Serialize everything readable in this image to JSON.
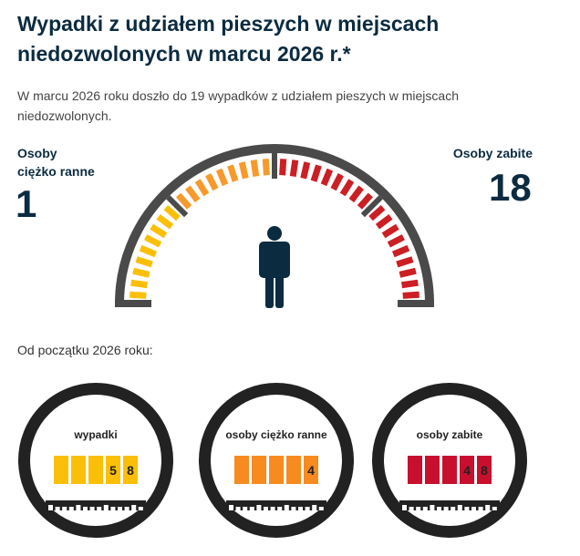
{
  "title": "Wypadki z udziałem pieszych w miejscach niedozwolonych w marcu 2026 r.*",
  "description": "W marcu 2026 roku doszło do 19 wypadków z udziałem pieszych w miejscach niedozwolonych.",
  "injured": {
    "label_line1": "Osoby",
    "label_line2": "ciężko ranne",
    "value": "1"
  },
  "killed": {
    "label": "Osoby zabite",
    "value": "18"
  },
  "since_label": "Od początku 2026 roku:",
  "colors": {
    "yellow": "#fbbf07",
    "orange": "#f79a2b",
    "red": "#cc1f24",
    "gauge_gray": "#4a4a4a",
    "person": "#0b2b40"
  },
  "counters": [
    {
      "title": "wypadki",
      "digits": [
        "",
        "",
        "",
        "5",
        "8"
      ],
      "color": "#fbbf07"
    },
    {
      "title": "osoby ciężko ranne",
      "digits": [
        "",
        "",
        "",
        "",
        "4"
      ],
      "color": "#f78b1f"
    },
    {
      "title": "osoby zabite",
      "digits": [
        "",
        "",
        "",
        "4",
        "8"
      ],
      "color": "#c8102e"
    }
  ]
}
